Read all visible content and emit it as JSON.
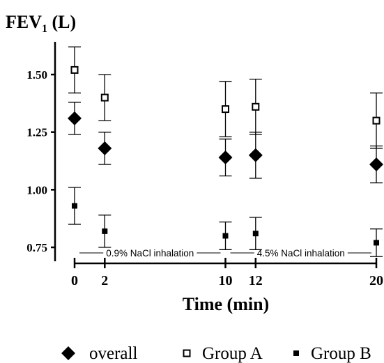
{
  "chart_data": {
    "type": "scatter",
    "title": "FEV",
    "title_sub": "1",
    "title_unit": " (L)",
    "xlabel": "Time (min)",
    "ylabel": "",
    "x_ticks": [
      0,
      2,
      10,
      12,
      20
    ],
    "x_tick_labels": [
      "0",
      "2",
      "10",
      "12",
      "20"
    ],
    "y_ticks": [
      0.75,
      1.0,
      1.25,
      1.5
    ],
    "y_tick_labels": [
      "0.75",
      "1.00",
      "1.25",
      "1.50"
    ],
    "ylim": [
      0.55,
      1.62
    ],
    "xlim": [
      -1.5,
      21
    ],
    "grid": false,
    "legend_position": "bottom",
    "series": [
      {
        "name": "overall",
        "marker": "diamond-filled",
        "color": "#000000",
        "points": [
          {
            "x": 0,
            "y": 1.31,
            "lo": 1.24,
            "hi": 1.38
          },
          {
            "x": 2,
            "y": 1.18,
            "lo": 1.11,
            "hi": 1.25
          },
          {
            "x": 10,
            "y": 1.14,
            "lo": 1.06,
            "hi": 1.22
          },
          {
            "x": 12,
            "y": 1.15,
            "lo": 1.05,
            "hi": 1.25
          },
          {
            "x": 20,
            "y": 1.11,
            "lo": 1.03,
            "hi": 1.19
          }
        ]
      },
      {
        "name": "Group A",
        "marker": "square-open",
        "color": "#000000",
        "points": [
          {
            "x": 0,
            "y": 1.52,
            "lo": 1.42,
            "hi": 1.62
          },
          {
            "x": 2,
            "y": 1.4,
            "lo": 1.3,
            "hi": 1.5
          },
          {
            "x": 10,
            "y": 1.35,
            "lo": 1.23,
            "hi": 1.47
          },
          {
            "x": 12,
            "y": 1.36,
            "lo": 1.24,
            "hi": 1.48
          },
          {
            "x": 20,
            "y": 1.3,
            "lo": 1.18,
            "hi": 1.42
          }
        ]
      },
      {
        "name": "Group B",
        "marker": "square-filled",
        "color": "#000000",
        "points": [
          {
            "x": 0,
            "y": 0.93,
            "lo": 0.85,
            "hi": 1.01
          },
          {
            "x": 2,
            "y": 0.82,
            "lo": 0.75,
            "hi": 0.89
          },
          {
            "x": 10,
            "y": 0.8,
            "lo": 0.74,
            "hi": 0.86
          },
          {
            "x": 12,
            "y": 0.81,
            "lo": 0.74,
            "hi": 0.88
          },
          {
            "x": 20,
            "y": 0.77,
            "lo": 0.71,
            "hi": 0.83
          }
        ]
      }
    ],
    "annotations": [
      {
        "text": "0.9% NaCl  inhalation",
        "x_from": 0,
        "x_to": 10
      },
      {
        "text": "4.5%  NaCl  inhalation",
        "x_from": 10,
        "x_to": 20
      }
    ]
  }
}
